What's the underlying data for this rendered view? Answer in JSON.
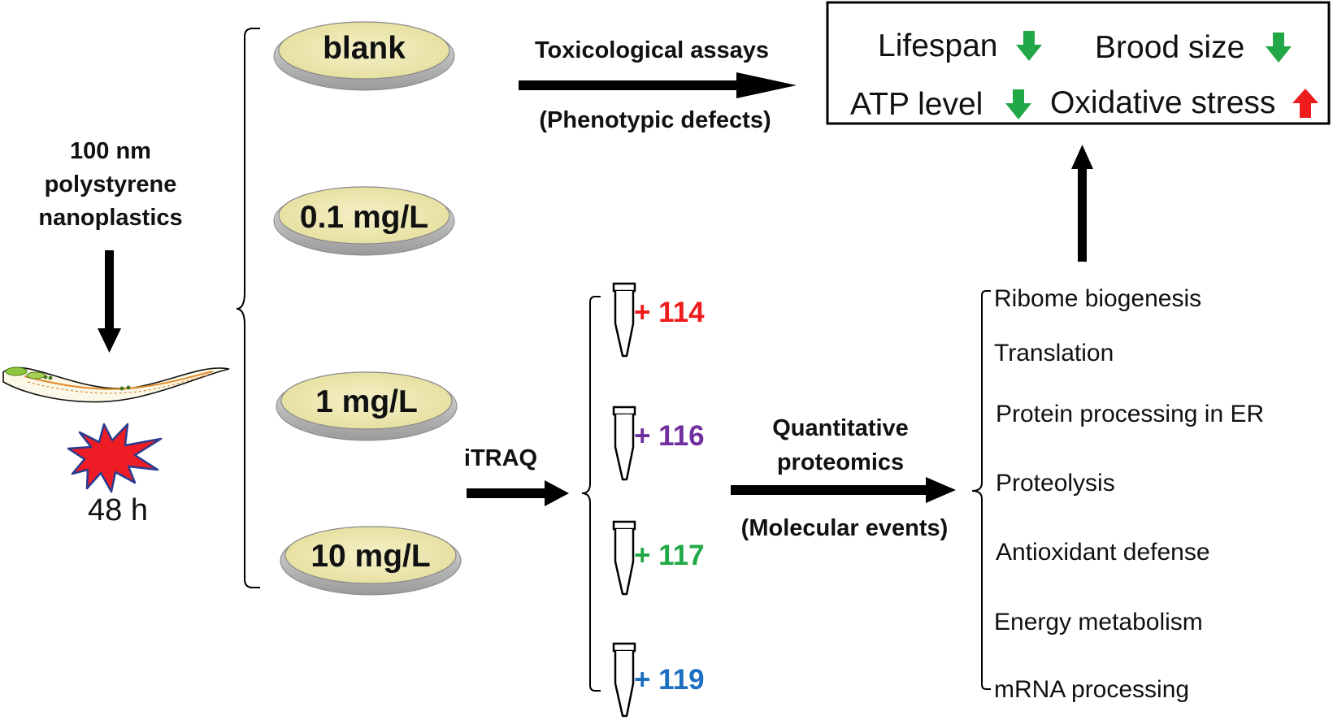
{
  "input": {
    "line1": "100 nm",
    "line2": "polystyrene",
    "line3": "nanoplastics",
    "exposure_time": "48 h"
  },
  "dishes": [
    {
      "label": "blank"
    },
    {
      "label": "0.1 mg/L"
    },
    {
      "label": "1 mg/L"
    },
    {
      "label": "10 mg/L"
    }
  ],
  "toxicology": {
    "title": "Toxicological assays",
    "subtitle": "(Phenotypic defects)"
  },
  "phenotypes": [
    {
      "label": "Lifespan",
      "direction": "down",
      "color": "#22a846"
    },
    {
      "label": "Brood size",
      "direction": "down",
      "color": "#22a846"
    },
    {
      "label": "ATP level",
      "direction": "down",
      "color": "#22a846"
    },
    {
      "label": "Oxidative stress",
      "direction": "up",
      "color": "#ee1c1c"
    }
  ],
  "itraq": {
    "label": "iTRAQ",
    "tags": [
      {
        "label": "+ 114",
        "color": "#ee1c1c"
      },
      {
        "label": "+ 116",
        "color": "#7030a0"
      },
      {
        "label": "+ 117",
        "color": "#22a846"
      },
      {
        "label": "+ 119",
        "color": "#1c6fc2"
      }
    ]
  },
  "proteomics": {
    "line1": "Quantitative",
    "line2": "proteomics",
    "subtitle": "(Molecular events)"
  },
  "molecular_events": [
    "Ribome biogenesis",
    "Translation",
    "Protein processing in ER",
    "Proteolysis",
    "Antioxidant defense",
    "Energy metabolism",
    "mRNA processing"
  ]
}
